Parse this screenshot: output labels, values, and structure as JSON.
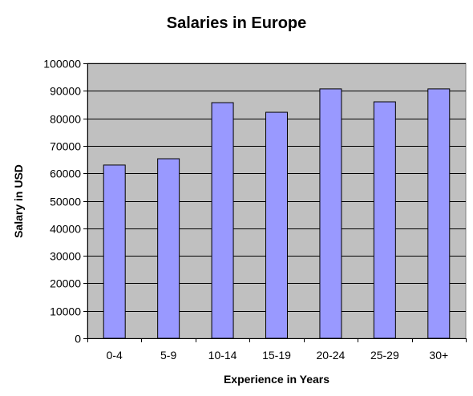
{
  "chart_data": {
    "type": "bar",
    "title": "Salaries in Europe",
    "xlabel": "Experience in Years",
    "ylabel": "Salary in USD",
    "categories": [
      "0-4",
      "5-9",
      "10-14",
      "15-19",
      "20-24",
      "25-29",
      "30+"
    ],
    "values": [
      63000,
      65300,
      85700,
      82200,
      90700,
      86000,
      90700
    ],
    "ylim": [
      0,
      100000
    ],
    "yticks": [
      0,
      10000,
      20000,
      30000,
      40000,
      50000,
      60000,
      70000,
      80000,
      90000,
      100000
    ],
    "ytick_labels": [
      "0",
      "10000",
      "20000",
      "30000",
      "40000",
      "50000",
      "60000",
      "70000",
      "80000",
      "90000",
      "100000"
    ],
    "grid": true,
    "legend": "none",
    "colors": {
      "bar_fill": "#9999ff",
      "plot_background": "#c0c0c0",
      "gridline": "#000000",
      "bar_stroke": "#000000"
    }
  }
}
